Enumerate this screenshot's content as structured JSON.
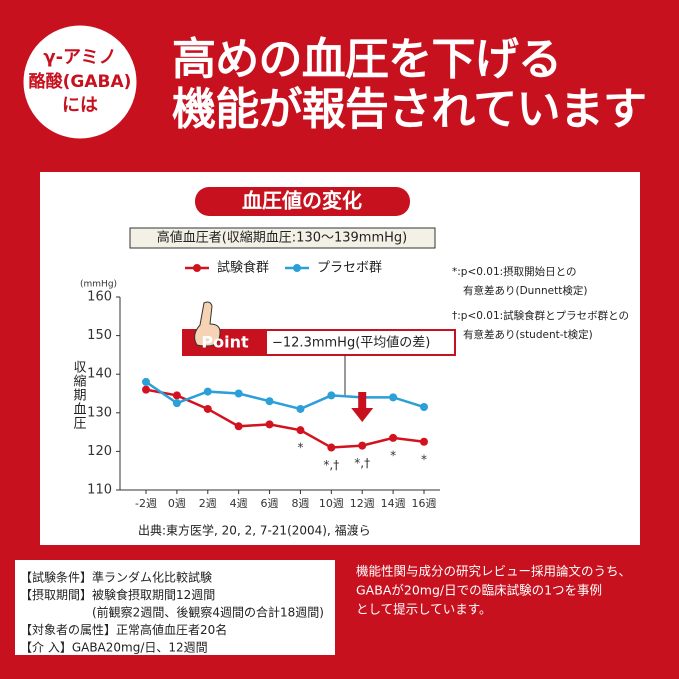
{
  "badge": [
    "γ-アミノ",
    "酪酸(GABA)",
    "には"
  ],
  "headline": [
    "高めの血圧を下げる",
    "機能が報告されています"
  ],
  "chart_data": {
    "type": "line",
    "title": "血圧値の変化",
    "subtitle": "高値血圧者(収縮期血圧:130〜139mmHg)",
    "y_unit": "(mmHg)",
    "y_label": "収縮期血圧",
    "categories": [
      "-2週",
      "0週",
      "2週",
      "4週",
      "6週",
      "8週",
      "10週",
      "12週",
      "14週",
      "16週"
    ],
    "series": [
      {
        "name": "試験食群",
        "color": "#d2131f",
        "values": [
          136,
          134.5,
          131,
          126.5,
          127,
          125.5,
          121,
          121.5,
          123.5,
          122.5
        ]
      },
      {
        "name": "プラセボ群",
        "color": "#2a9fd8",
        "values": [
          138,
          132.5,
          135.5,
          135,
          133,
          131,
          134.5,
          134,
          134,
          131.5
        ]
      }
    ],
    "annotations": [
      null,
      null,
      null,
      null,
      null,
      "*",
      "*,†",
      "*,†",
      "*",
      "*"
    ],
    "ylim": [
      110,
      160
    ],
    "yticks": [
      110,
      120,
      130,
      140,
      150,
      160
    ],
    "point_label": "Point",
    "point_text": "−12.3mmHg(平均値の差)",
    "notes": [
      "*:p<0.01:摂取開始日との",
      "有意差あり(Dunnett検定)",
      "†:p<0.01:試験食群とプラセボ群との",
      "有意差あり(student-t検定)"
    ],
    "source": "出典:東方医学, 20, 2, 7-21(2004), 福渡ら"
  },
  "conditions": [
    "【試験条件】準ランダム化比較試験",
    "【摂取期間】被験食摂取期間12週間",
    "(前観察2週間、後観察4週間の合計18週間)",
    "【対象者の属性】正常高値血圧者20名",
    "【介 入】GABA20mg/日、12週間"
  ],
  "remark": [
    "機能性関与成分の研究レビュー採用論文のうち、",
    "GABAが20mg/日での臨床試験の1つを事例",
    "として提示しています。"
  ]
}
